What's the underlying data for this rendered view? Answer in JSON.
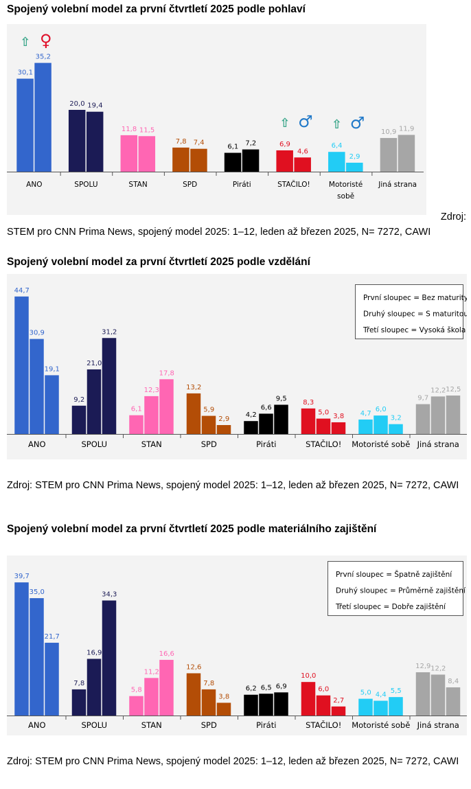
{
  "colors": {
    "ANO": "#3366cc",
    "SPOLU": "#1b1b55",
    "STAN": "#ff66b3",
    "SPD": "#b34d06",
    "Piráti": "#000000",
    "STAČILO!": "#e01020",
    "Motoristé sobě": "#22ccf5",
    "Jiná strana": "#a6a6a6"
  },
  "icons": {
    "up_arrow": "⇧",
    "female": "♀",
    "male": "♂"
  },
  "chart_data": [
    {
      "type": "bar",
      "title": "Spojený volební model za první čtvrtletí 2025 podle pohlaví",
      "categories": [
        "ANO",
        "SPOLU",
        "STAN",
        "SPD",
        "Piráti",
        "STAČILO!",
        "Motoristé sobě",
        "Jiná strana"
      ],
      "category_labels": [
        [
          "ANO"
        ],
        [
          "SPOLU"
        ],
        [
          "STAN"
        ],
        [
          "SPD"
        ],
        [
          "Piráti"
        ],
        [
          "STAČILO!"
        ],
        [
          "Motoristé",
          "sobě"
        ],
        [
          "Jiná strana"
        ]
      ],
      "series": [
        {
          "name": "Muži",
          "values": [
            30.1,
            20.0,
            11.8,
            7.8,
            6.1,
            6.9,
            6.4,
            10.9
          ]
        },
        {
          "name": "Ženy",
          "values": [
            35.2,
            19.4,
            11.5,
            7.4,
            7.2,
            4.6,
            2.9,
            11.9
          ]
        }
      ],
      "labels": [
        [
          "30,1",
          "20,0",
          "11,8",
          "7,8",
          "6,1",
          "6,9",
          "6,4",
          "10,9"
        ],
        [
          "35,2",
          "19,4",
          "11,5",
          "7,4",
          "7,2",
          "4,6",
          "2,9",
          "11,9"
        ]
      ],
      "ylim": [
        0,
        40
      ],
      "annotations": [
        {
          "category": "ANO",
          "icons": [
            "up_arrow",
            "female"
          ]
        },
        {
          "category": "STAČILO!",
          "icons": [
            "up_arrow",
            "male"
          ]
        },
        {
          "category": "Motoristé sobě",
          "icons": [
            "up_arrow",
            "male"
          ]
        }
      ],
      "source": "Zdroj: STEM pro CNN Prima News, spojený model 2025: 1–12, leden až březen 2025, N= 7272, CAWI",
      "source_parts": [
        "Zdroj:",
        "STEM pro CNN Prima News, spojený model 2025: 1–12, leden až březen 2025, N= 7272, CAWI"
      ]
    },
    {
      "type": "bar",
      "title": "Spojený volební model za první čtvrtletí 2025 podle vzdělání",
      "categories": [
        "ANO",
        "SPOLU",
        "STAN",
        "SPD",
        "Piráti",
        "STAČILO!",
        "Motoristé sobě",
        "Jiná strana"
      ],
      "category_labels": [
        [
          "ANO"
        ],
        [
          "SPOLU"
        ],
        [
          "STAN"
        ],
        [
          "SPD"
        ],
        [
          "Piráti"
        ],
        [
          "STAČILO!"
        ],
        [
          "Motoristé sobě"
        ],
        [
          "Jiná strana"
        ]
      ],
      "series": [
        {
          "name": "Bez maturity",
          "values": [
            44.7,
            9.2,
            6.1,
            13.2,
            4.2,
            8.3,
            4.7,
            9.7
          ]
        },
        {
          "name": "S maturitou",
          "values": [
            30.9,
            21.0,
            12.3,
            5.9,
            6.6,
            5.0,
            6.0,
            12.2
          ]
        },
        {
          "name": "Vysoká škola",
          "values": [
            19.1,
            31.2,
            17.8,
            2.9,
            9.5,
            3.8,
            3.2,
            12.5
          ]
        }
      ],
      "labels": [
        [
          "44,7",
          "9,2",
          "6,1",
          "13,2",
          "4,2",
          "8,3",
          "4,7",
          "9,7"
        ],
        [
          "30,9",
          "21,0",
          "12,3",
          "5,9",
          "6,6",
          "5,0",
          "6,0",
          "12,2"
        ],
        [
          "19,1",
          "31,2",
          "17,8",
          "2,9",
          "9,5",
          "3,8",
          "3,2",
          "12,5"
        ]
      ],
      "ylim": [
        0,
        48
      ],
      "legend": [
        "První sloupec = Bez maturity",
        "Druhý sloupec = S maturitou",
        "Třetí sloupec = Vysoká škola"
      ],
      "legend_position": "top-right",
      "source": "Zdroj: STEM pro CNN Prima News, spojený model 2025: 1–12, leden až březen 2025, N= 7272, CAWI"
    },
    {
      "type": "bar",
      "title": "Spojený volební model za první čtvrtletí 2025 podle materiálního zajištění",
      "categories": [
        "ANO",
        "SPOLU",
        "STAN",
        "SPD",
        "Piráti",
        "STAČILO!",
        "Motoristé sobě",
        "Jiná strana"
      ],
      "category_labels": [
        [
          "ANO"
        ],
        [
          "SPOLU"
        ],
        [
          "STAN"
        ],
        [
          "SPD"
        ],
        [
          "Piráti"
        ],
        [
          "STAČILO!"
        ],
        [
          "Motoristé sobě"
        ],
        [
          "Jiná strana"
        ]
      ],
      "series": [
        {
          "name": "Špatně zajištění",
          "values": [
            39.7,
            7.8,
            5.8,
            12.6,
            6.2,
            10.0,
            5.0,
            12.9
          ]
        },
        {
          "name": "Průměrně zajištění",
          "values": [
            35.0,
            16.9,
            11.2,
            7.8,
            6.5,
            6.0,
            4.4,
            12.2
          ]
        },
        {
          "name": "Dobře zajištění",
          "values": [
            21.7,
            34.3,
            16.6,
            3.8,
            6.9,
            2.7,
            5.5,
            8.4
          ]
        }
      ],
      "labels": [
        [
          "39,7",
          "7,8",
          "5,8",
          "12,6",
          "6,2",
          "10,0",
          "5,0",
          "12,9"
        ],
        [
          "35,0",
          "16,9",
          "11,2",
          "7,8",
          "6,5",
          "6,0",
          "4,4",
          "12,2"
        ],
        [
          "21,7",
          "34,3",
          "16,6",
          "3,8",
          "6,9",
          "2,7",
          "5,5",
          "8,4"
        ]
      ],
      "ylim": [
        0,
        43
      ],
      "legend": [
        "První sloupec = Špatně zajištění",
        "Druhý sloupec = Průměrně zajištění",
        "Třetí sloupec = Dobře zajištění"
      ],
      "legend_position": "top-right",
      "source": "Zdroj: STEM pro CNN Prima News, spojený model 2025: 1–12, leden až březen 2025, N= 7272, CAWI"
    }
  ]
}
